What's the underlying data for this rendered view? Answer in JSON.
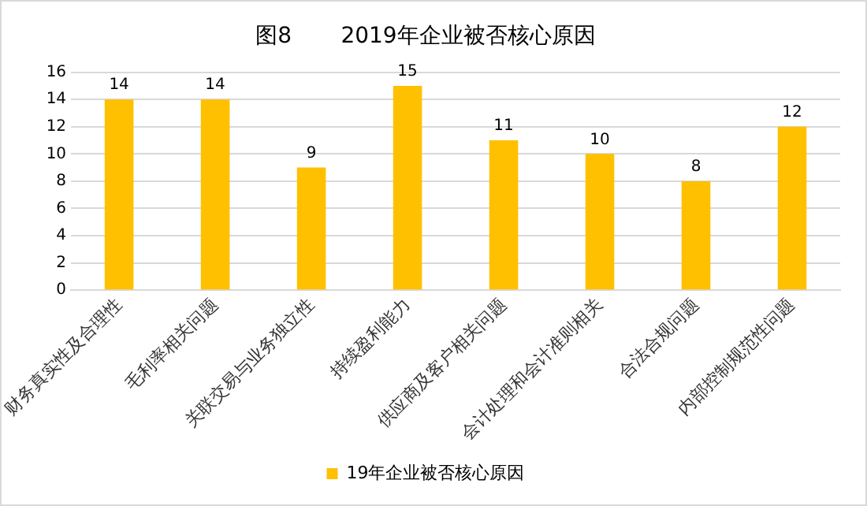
{
  "chart_data": {
    "type": "bar",
    "title": "图8       2019年企业被否核心原因",
    "categories": [
      "财务真实性及合理性",
      "毛利率相关问题",
      "关联交易与业务独立性",
      "持续盈利能力",
      "供应商及客户相关问题",
      "会计处理和会计准则相关",
      "合法合规问题",
      "内部控制规范性问题"
    ],
    "series": [
      {
        "name": "19年企业被否核心原因",
        "color": "#ffc000",
        "values": [
          14,
          14,
          9,
          15,
          11,
          10,
          8,
          12
        ]
      }
    ],
    "ylim": [
      0,
      16
    ],
    "yticks": [
      0,
      2,
      4,
      6,
      8,
      10,
      12,
      14,
      16
    ],
    "grid": "y",
    "legend": "bottom",
    "data_labels": true
  }
}
